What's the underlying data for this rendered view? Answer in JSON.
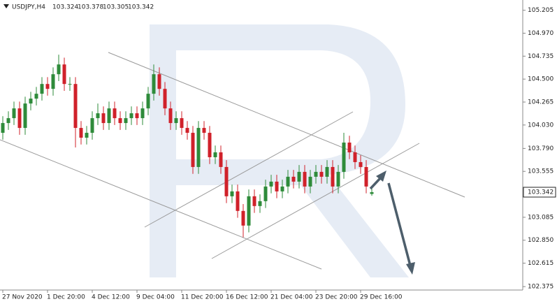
{
  "chart_data": {
    "type": "candlestick",
    "title": "USDJPY,H4",
    "categories": [
      "27 Nov 2020",
      null,
      null,
      null,
      null,
      null,
      null,
      null,
      "1 Dec 20:00",
      null,
      null,
      null,
      null,
      null,
      null,
      null,
      "4 Dec 12:00",
      null,
      null,
      null,
      null,
      null,
      null,
      null,
      "9 Dec 04:00",
      null,
      null,
      null,
      null,
      null,
      null,
      null,
      "11 Dec 20:00",
      null,
      null,
      null,
      null,
      null,
      null,
      null,
      "16 Dec 12:00",
      null,
      null,
      null,
      null,
      null,
      null,
      null,
      "21 Dec 04:00",
      null,
      null,
      null,
      null,
      null,
      null,
      null,
      "23 Dec 20:00",
      null,
      null,
      null,
      null,
      null,
      null,
      null,
      "29 Dec 16:00",
      null,
      null
    ],
    "open": [
      103.95,
      104.05,
      104.1,
      104.2,
      104,
      104.25,
      104.3,
      104.35,
      104.45,
      104.4,
      104.55,
      104.65,
      104.45,
      104.45,
      104,
      103.9,
      103.95,
      104.1,
      104.15,
      104.05,
      104.2,
      104.1,
      104.05,
      104.1,
      104.15,
      104.1,
      104.2,
      104.35,
      104.55,
      104.4,
      104.2,
      104.05,
      104.1,
      104,
      103.95,
      103.6,
      104,
      103.95,
      103.7,
      103.75,
      103.6,
      103.3,
      103.35,
      103.15,
      103,
      103.3,
      103.2,
      103.25,
      103.4,
      103.45,
      103.35,
      103.4,
      103.5,
      103.45,
      103.55,
      103.4,
      103.5,
      103.55,
      103.5,
      103.6,
      103.4,
      103.55,
      103.85,
      103.75,
      103.65,
      103.6,
      103.324
    ],
    "high": [
      104.12,
      104.17,
      104.27,
      104.27,
      104.32,
      104.37,
      104.42,
      104.52,
      104.52,
      104.62,
      104.75,
      104.72,
      104.52,
      104.52,
      104.07,
      104.02,
      104.17,
      104.25,
      104.22,
      104.27,
      104.27,
      104.17,
      104.17,
      104.22,
      104.22,
      104.27,
      104.42,
      104.65,
      104.62,
      104.47,
      104.27,
      104.17,
      104.17,
      104.07,
      104.02,
      104.07,
      104.07,
      104.02,
      103.82,
      103.82,
      103.67,
      103.42,
      103.42,
      103.22,
      103.37,
      103.37,
      103.32,
      103.47,
      103.52,
      103.52,
      103.47,
      103.57,
      103.57,
      103.62,
      103.62,
      103.57,
      103.62,
      103.62,
      103.67,
      103.67,
      103.62,
      103.95,
      103.92,
      103.82,
      103.72,
      103.67,
      103.378
    ],
    "low": [
      103.88,
      103.98,
      104.03,
      103.93,
      103.93,
      104.18,
      104.23,
      104.28,
      104.33,
      104.33,
      104.48,
      104.38,
      104.38,
      103.8,
      103.83,
      103.83,
      103.88,
      104.03,
      103.98,
      103.98,
      104.03,
      103.98,
      103.98,
      104.03,
      104.03,
      104.03,
      104.13,
      104.28,
      104.33,
      104.13,
      103.98,
      103.98,
      103.93,
      103.88,
      103.53,
      103.53,
      103.88,
      103.63,
      103.63,
      103.53,
      103.23,
      103.23,
      103.08,
      102.88,
      102.93,
      103.13,
      103.13,
      103.18,
      103.33,
      103.28,
      103.28,
      103.33,
      103.38,
      103.38,
      103.33,
      103.33,
      103.43,
      103.43,
      103.43,
      103.33,
      103.33,
      103.48,
      103.68,
      103.58,
      103.53,
      103.33,
      103.305
    ],
    "close": [
      104.05,
      104.1,
      104.2,
      104,
      104.25,
      104.3,
      104.35,
      104.45,
      104.4,
      104.55,
      104.65,
      104.45,
      104.45,
      104,
      103.9,
      103.95,
      104.1,
      104.15,
      104.05,
      104.2,
      104.1,
      104.05,
      104.1,
      104.15,
      104.1,
      104.2,
      104.35,
      104.55,
      104.4,
      104.2,
      104.05,
      104.1,
      104,
      103.95,
      103.6,
      104,
      103.95,
      103.7,
      103.75,
      103.6,
      103.3,
      103.35,
      103.15,
      103,
      103.3,
      103.2,
      103.25,
      103.4,
      103.45,
      103.35,
      103.4,
      103.5,
      103.45,
      103.55,
      103.4,
      103.5,
      103.55,
      103.5,
      103.6,
      103.4,
      103.55,
      103.85,
      103.75,
      103.65,
      103.6,
      103.4,
      103.342
    ],
    "up_color": "#2e8b3a",
    "down_color": "#d0212a",
    "ylim": [
      102.34,
      105.31
    ],
    "yticks": [
      105.205,
      {
        "value": 104.97,
        "label": "104.970"
      },
      104.735,
      {
        "value": 104.5,
        "label": "104.500"
      },
      104.265,
      {
        "value": 104.03,
        "label": "104.030"
      },
      {
        "value": 103.79,
        "label": "103.790"
      },
      103.555,
      103.085,
      {
        "value": 102.85,
        "label": "102.850"
      },
      102.615,
      102.375
    ]
  }
}
